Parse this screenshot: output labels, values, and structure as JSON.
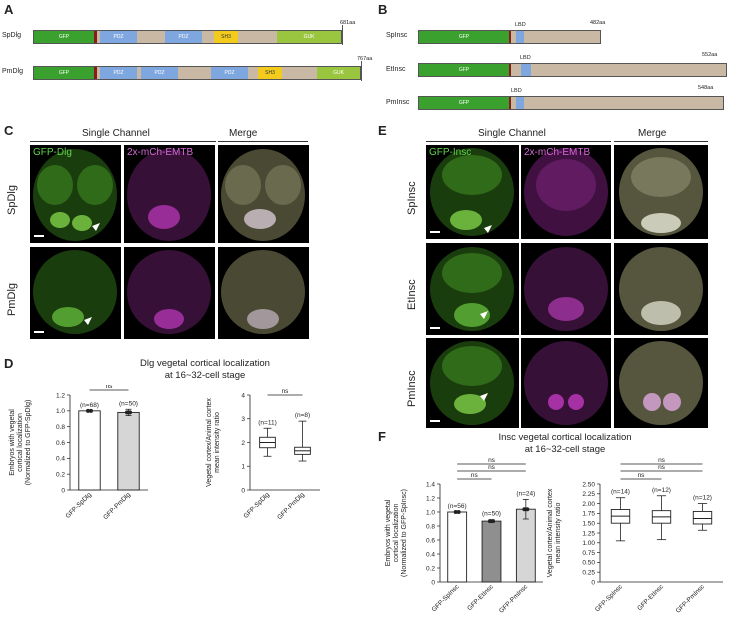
{
  "panels": {
    "a": "A",
    "b": "B",
    "c": "C",
    "d": "D",
    "e": "E",
    "f": "F"
  },
  "domainA": {
    "rows": [
      {
        "name": "SpDlg",
        "length": "681aa"
      },
      {
        "name": "PmDlg",
        "length": "767aa"
      }
    ],
    "labels": {
      "gfp": "GFP",
      "pdz": "PDZ",
      "sh3": "SH3",
      "guk": "GUK"
    }
  },
  "domainB": {
    "rows": [
      {
        "name": "SpInsc",
        "length": "482aa"
      },
      {
        "name": "EtInsc",
        "length": "552aa"
      },
      {
        "name": "PmInsc",
        "length": "548aa"
      }
    ],
    "labels": {
      "gfp": "GFP",
      "lbd": "LBD"
    }
  },
  "colors": {
    "gfp": "#3aa12e",
    "pdz": "#7fa7df",
    "sh3": "#f2cb1d",
    "guk": "#9ac53e",
    "linker": "#c9b9a4",
    "lbd": "#7fa7df",
    "magenta": "#c23ac2"
  },
  "panelC": {
    "header_single": "Single Channel",
    "header_merge": "Merge",
    "ch1": "GFP-Dlg",
    "ch2": "2x-mCh-EMTB",
    "rows": [
      "SpDlg",
      "PmDlg"
    ]
  },
  "panelE": {
    "header_single": "Single Channel",
    "header_merge": "Merge",
    "ch1": "GFP-Insc",
    "ch2": "2x-mCh-EMTB",
    "rows": [
      "SpInsc",
      "EtInsc",
      "PmInsc"
    ]
  },
  "panelD": {
    "title1": "Dlg vegetal cortical localization",
    "title2": "at 16~32-cell stage",
    "sig": "ns"
  },
  "panelF": {
    "title1": "Insc vegetal cortical localization",
    "title2": "at 16~32-cell stage",
    "sig": "ns"
  },
  "chart_data": [
    {
      "type": "bar",
      "panel": "D-left",
      "ylabel_lines": [
        "Embryos with vegetal",
        "cortical localization",
        "(Normalized to GFP-SpDlg)"
      ],
      "categories": [
        "GFP-SpDlg",
        "GFP-PmDlg"
      ],
      "values": [
        1.0,
        0.98
      ],
      "errors": [
        0.0,
        0.04
      ],
      "n_labels": [
        "(n=68)",
        "(n=50)"
      ],
      "fills": [
        "#ffffff",
        "#d6d6d6"
      ],
      "ylim": [
        0,
        1.2
      ],
      "yticks": [
        "0",
        "0.2",
        "0.4",
        "0.6",
        "0.8",
        "1.0",
        "1.2"
      ]
    },
    {
      "type": "box",
      "panel": "D-right",
      "ylabel_lines": [
        "Vegetal cortex/Animal cortex",
        "mean intensity ratio"
      ],
      "categories": [
        "GFP-SpDlg",
        "GFP-PmDlg"
      ],
      "boxes": [
        {
          "min": 1.42,
          "q1": 1.78,
          "median": 2.0,
          "q3": 2.22,
          "max": 2.6
        },
        {
          "min": 1.22,
          "q1": 1.5,
          "median": 1.65,
          "q3": 1.8,
          "max": 2.9
        }
      ],
      "n_labels": [
        "(n=11)",
        "(n=8)"
      ],
      "ylim": [
        0,
        4
      ],
      "yticks": [
        "0",
        "1",
        "2",
        "3",
        "4"
      ]
    },
    {
      "type": "bar",
      "panel": "F-left",
      "ylabel_lines": [
        "Embryos with vegetal",
        "cortical localization",
        "(Normalized to GFP-SpInsc)"
      ],
      "categories": [
        "GFP-SpInsc",
        "GFP-EtInsc",
        "GFP-PmInsc"
      ],
      "values": [
        1.0,
        0.87,
        1.04
      ],
      "errors": [
        0.0,
        0.02,
        0.14
      ],
      "n_labels": [
        "(n=56)",
        "(n=50)",
        "(n=24)"
      ],
      "fills": [
        "#ffffff",
        "#8f8f8f",
        "#d6d6d6"
      ],
      "ylim": [
        0,
        1.4
      ],
      "yticks": [
        "0",
        "0.2",
        "0.4",
        "0.6",
        "0.8",
        "1.0",
        "1.2",
        "1.4"
      ]
    },
    {
      "type": "box",
      "panel": "F-right",
      "ylabel_lines": [
        "Vegetal cortex/Animal cortex",
        "mean intensity ratio"
      ],
      "categories": [
        "GFP-SpInsc",
        "GFP-EtInsc",
        "GFP-PmInsc"
      ],
      "boxes": [
        {
          "min": 1.05,
          "q1": 1.5,
          "median": 1.68,
          "q3": 1.85,
          "max": 2.15
        },
        {
          "min": 1.08,
          "q1": 1.5,
          "median": 1.66,
          "q3": 1.82,
          "max": 2.2
        },
        {
          "min": 1.32,
          "q1": 1.48,
          "median": 1.62,
          "q3": 1.8,
          "max": 2.0
        }
      ],
      "n_labels": [
        "(n=14)",
        "(n=12)",
        "(n=12)"
      ],
      "ylim": [
        0,
        2.5
      ],
      "yticks": [
        "0",
        "0.25",
        "0.50",
        "0.75",
        "1.00",
        "1.25",
        "1.50",
        "1.75",
        "2.00",
        "2.25",
        "2.50"
      ]
    }
  ]
}
